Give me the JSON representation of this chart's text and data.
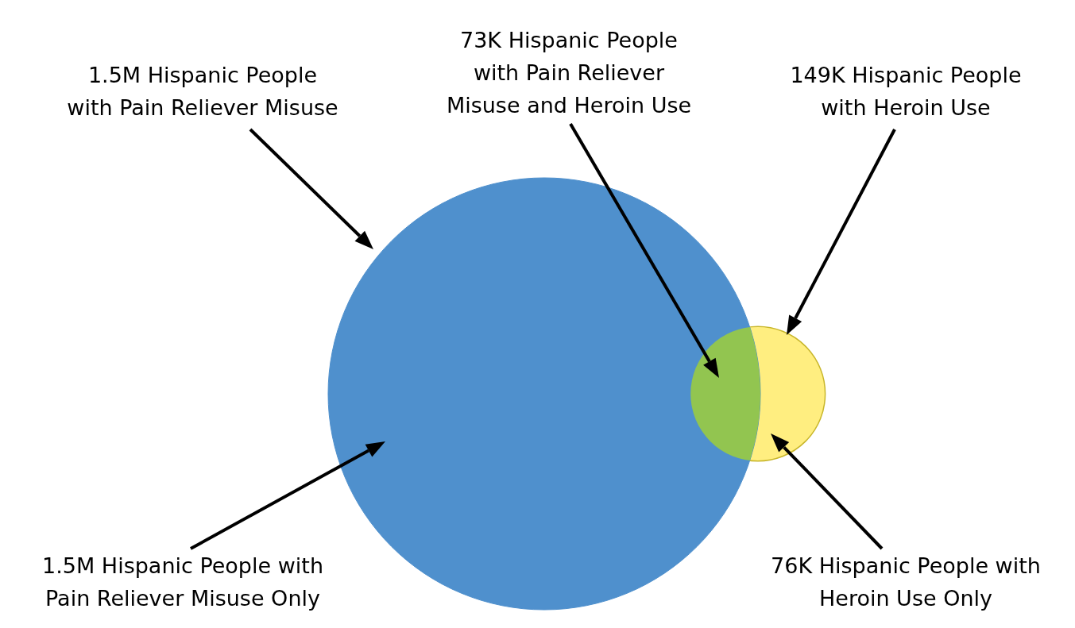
{
  "chart_data": {
    "type": "other",
    "categories": [
      "Hispanic People with Pain Reliever Misuse",
      "Hispanic People with Heroin Use",
      "Hispanic People with Pain Reliever Misuse and Heroin Use",
      "Hispanic People with Pain Reliever Misuse Only",
      "Hispanic People with Heroin Use Only"
    ],
    "values": [
      1500000,
      149000,
      73000,
      1500000,
      76000
    ],
    "value_labels": [
      "1.5M",
      "149K",
      "73K",
      "1.5M",
      "76K"
    ],
    "colors": [
      "#4f90cd",
      "#c8b62a",
      "#92c550",
      "#4f90cd",
      "#ffee80"
    ]
  }
}
